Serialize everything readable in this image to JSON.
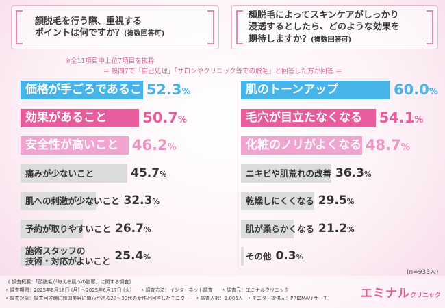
{
  "header": {
    "left_question_line1": "顔脱毛を行う際、重視する",
    "left_question_line2": "ポイントは何ですか？",
    "left_question_note": "(複数回答可)",
    "right_question_line1": "顔脱毛によってスキンケアがしっかり",
    "right_question_line2": "浸透するとしたら、どのような効果を",
    "right_question_line3": "期待しますか？",
    "right_question_note": "(複数回答可)"
  },
  "notes": {
    "top": "※全11項目中上位7項目を抜粋",
    "mid": "＝ 設問7で「自己処理」「サロンやクリニック等での脱毛」と回答した方が回答 ＝"
  },
  "chart_data": [
    {
      "type": "bar",
      "orientation": "horizontal",
      "title": "顔脱毛を行う際、重視するポイントは何ですか？(複数回答可)",
      "unit": "%",
      "xlim": [
        0,
        60
      ],
      "categories": [
        "価格が手ごろであること",
        "効果があること",
        "安全性が高いこと",
        "痛みが少ないこと",
        "肌への刺激が少ないこと",
        "予約が取りやすいこと",
        "施術スタッフの\n技術・対応がよいこと"
      ],
      "values": [
        52.3,
        50.7,
        46.2,
        45.7,
        32.3,
        26.7,
        25.4
      ],
      "colors": [
        "#46b4e8",
        "#e75c9c",
        "#f0a4cf",
        "#dcdcdc",
        "#dcdcdc",
        "#dcdcdc",
        "#dcdcdc"
      ],
      "value_colors": [
        "#46b4e8",
        "#e75c9c",
        "#ee94c4",
        "#333333",
        "#333333",
        "#333333",
        "#333333"
      ]
    },
    {
      "type": "bar",
      "orientation": "horizontal",
      "title": "顔脱毛によってスキンケアがしっかり浸透するとしたら、どのような効果を期待しますか？(複数回答可)",
      "unit": "%",
      "xlim": [
        0,
        60
      ],
      "categories": [
        "肌のトーンアップ",
        "毛穴が目立たなくなる",
        "化粧のノリがよくなる",
        "ニキビや肌荒れの改善",
        "乾燥しにくくなる",
        "肌が柔らかくなる",
        "その他"
      ],
      "values": [
        60.0,
        54.1,
        48.7,
        36.3,
        29.5,
        21.2,
        0.3
      ],
      "colors": [
        "#46b4e8",
        "#e75c9c",
        "#f0a4cf",
        "#dcdcdc",
        "#dcdcdc",
        "#dcdcdc",
        "#dcdcdc"
      ],
      "value_colors": [
        "#46b4e8",
        "#e75c9c",
        "#ee94c4",
        "#333333",
        "#333333",
        "#333333",
        "#333333"
      ],
      "sample": "(n=933人)"
    }
  ],
  "footer": {
    "line1": "《 調査概要：「顔脱毛が与える肌への影響」に関する調査》",
    "line2": "• 調査期間：2025年6月16日 (月) ～2025年6月17日 (火)　　• 調査方法：インターネット調査　　• 調査元：エミナルクリニック",
    "line3": "• 調査対象：調査回答時に韓国美容に関心がある20～30代の女性と回答したモニター　 • 調査人数：1,005人　• モニター提供元：PRIZMAリサーチ"
  },
  "logo": {
    "main": "エミナル",
    "sub": "クリニック"
  }
}
